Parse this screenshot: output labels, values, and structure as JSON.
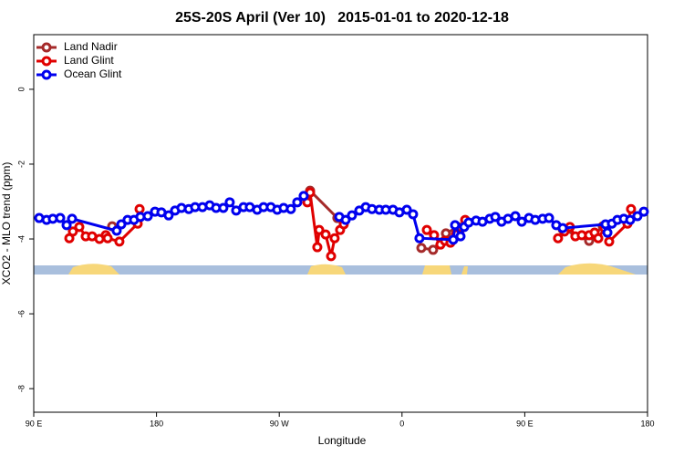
{
  "chart_data": {
    "type": "line",
    "title": "25S-20S April (Ver 10)   2015-01-01 to 2020-12-18",
    "x_label": "Longitude",
    "y_label": "XCO2 - MLO trend (ppm)",
    "xlim": [
      90,
      540
    ],
    "ylim": [
      -8.63,
      1.46
    ],
    "xticks": [
      {
        "value": 90,
        "label": "90 E"
      },
      {
        "value": 180,
        "label": "180"
      },
      {
        "value": 270,
        "label": "90 W"
      },
      {
        "value": 360,
        "label": "0"
      },
      {
        "value": 450,
        "label": "90 E"
      },
      {
        "value": 540,
        "label": "180"
      }
    ],
    "yticks": [
      0,
      -2,
      -4,
      -6,
      -8
    ],
    "legend": "top-left",
    "series": [
      {
        "name": "Land Nadir",
        "color": "#a52a2a",
        "x": [
          147.5,
          null,
          292.6,
          312.6,
          null,
          374.2,
          382.8,
          392.2,
          400.9,
          null,
          477.8,
          497.2,
          507.2
        ],
        "values": [
          -3.66,
          null,
          -2.71,
          -3.44,
          null,
          -4.24,
          -4.29,
          -3.85,
          -3.68,
          null,
          -3.74,
          -4.05,
          -3.66
        ]
      },
      {
        "name": "Land Glint",
        "color": "#e00000",
        "x": [
          116.1,
          118.7,
          123.4,
          128.1,
          132.8,
          138.2,
          142.8,
          144.2,
          152.8,
          166.2,
          167.6,
          null,
          290.6,
          292.6,
          297.9,
          299.3,
          304.0,
          308.0,
          310.6,
          314.6,
          317.3,
          null,
          378.2,
          383.5,
          388.2,
          391.5,
          395.5,
          399.6,
          403.6,
          406.3,
          null,
          474.4,
          479.1,
          483.1,
          487.1,
          491.8,
          497.2,
          501.2,
          503.9,
          508.5,
          511.9,
          525.3,
          527.9
        ],
        "values": [
          -3.98,
          -3.8,
          -3.68,
          -3.93,
          -3.93,
          -4.0,
          -3.9,
          -3.98,
          -4.07,
          -3.59,
          -3.2,
          null,
          -3.02,
          -2.76,
          -4.22,
          -3.76,
          -3.88,
          -4.46,
          -3.98,
          -3.76,
          -3.61,
          null,
          -3.76,
          -3.9,
          -4.15,
          -4.05,
          -4.1,
          -3.88,
          -3.71,
          -3.49,
          null,
          -3.98,
          -3.8,
          -3.68,
          -3.93,
          -3.9,
          -3.9,
          -3.83,
          -3.98,
          -3.71,
          -4.07,
          -3.59,
          -3.2
        ]
      },
      {
        "name": "Ocean Glint",
        "color": "#0000ee",
        "x": [
          94.0,
          99.4,
          104.0,
          109.4,
          114.1,
          118.1,
          150.8,
          154.2,
          158.8,
          163.5,
          168.2,
          173.6,
          178.9,
          183.6,
          188.9,
          193.6,
          198.3,
          203.7,
          208.3,
          213.7,
          219.0,
          223.7,
          229.0,
          233.7,
          238.4,
          243.8,
          248.4,
          253.8,
          258.5,
          263.8,
          268.5,
          273.2,
          278.5,
          283.2,
          287.9,
          null,
          314.0,
          318.7,
          323.3,
          328.7,
          333.4,
          338.0,
          343.4,
          348.1,
          353.4,
          358.1,
          363.5,
          368.1,
          372.8,
          397.6,
          398.9,
          402.9,
          405.6,
          408.9,
          414.3,
          419.0,
          424.3,
          428.4,
          433.0,
          437.7,
          443.1,
          447.8,
          453.1,
          457.7,
          463.1,
          467.8,
          473.1,
          477.8,
          509.2,
          510.6,
          513.9,
          517.9,
          522.6,
          527.3,
          532.6,
          537.3
        ],
        "values": [
          -3.44,
          -3.49,
          -3.46,
          -3.44,
          -3.63,
          -3.46,
          -3.78,
          -3.61,
          -3.49,
          -3.49,
          -3.41,
          -3.39,
          -3.27,
          -3.29,
          -3.37,
          -3.24,
          -3.17,
          -3.2,
          -3.15,
          -3.15,
          -3.1,
          -3.17,
          -3.17,
          -3.02,
          -3.24,
          -3.15,
          -3.15,
          -3.22,
          -3.15,
          -3.15,
          -3.22,
          -3.17,
          -3.2,
          -3.02,
          -2.85,
          null,
          -3.41,
          -3.49,
          -3.37,
          -3.24,
          -3.15,
          -3.2,
          -3.22,
          -3.22,
          -3.22,
          -3.29,
          -3.22,
          -3.34,
          -3.98,
          -4.02,
          -3.63,
          -3.93,
          -3.68,
          -3.56,
          -3.51,
          -3.54,
          -3.46,
          -3.41,
          -3.54,
          -3.46,
          -3.39,
          -3.54,
          -3.44,
          -3.49,
          -3.46,
          -3.44,
          -3.63,
          -3.71,
          -3.61,
          -3.83,
          -3.59,
          -3.49,
          -3.46,
          -3.49,
          -3.39,
          -3.27
        ]
      }
    ]
  }
}
